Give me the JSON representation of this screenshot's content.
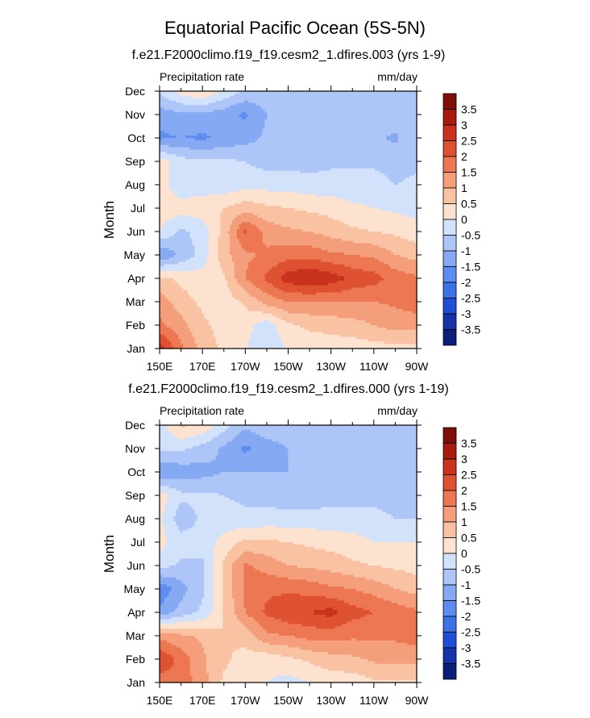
{
  "title": "Equatorial Pacific Ocean (5S-5N)",
  "palette": [
    "#0b1e7a",
    "#1433a8",
    "#1f4fd4",
    "#3b72e6",
    "#5d8df0",
    "#86a9f3",
    "#aec6f7",
    "#d3e2fb",
    "#fde2cf",
    "#f9c2a3",
    "#f49e7b",
    "#ec7752",
    "#de5231",
    "#c9321c",
    "#a81c10",
    "#7d0e08"
  ],
  "chart_data": [
    {
      "type": "heatmap",
      "title": "f.e21.F2000climo.f19_f19.cesm2_1.dfires.003 (yrs 1-9)",
      "variable": "Precipitation rate",
      "units": "mm/day",
      "xlabel": "",
      "ylabel": "Month",
      "x": [
        "150E",
        "160E",
        "170E",
        "180",
        "170W",
        "160W",
        "150W",
        "140W",
        "130W",
        "120W",
        "110W",
        "100W",
        "90W"
      ],
      "x_ticks": [
        "150E",
        "170E",
        "170W",
        "150W",
        "130W",
        "110W",
        "90W"
      ],
      "y": [
        "Jan",
        "Feb",
        "Mar",
        "Apr",
        "May",
        "Jun",
        "Jul",
        "Aug",
        "Sep",
        "Oct",
        "Nov",
        "Dec"
      ],
      "colorbar_levels": [
        "3.5",
        "3",
        "2.5",
        "2",
        "1.5",
        "1",
        "0.5",
        "0",
        "-0.5",
        "-1",
        "-1.5",
        "-2",
        "-2.5",
        "-3",
        "-3.5"
      ],
      "values": [
        [
          2.8,
          1.6,
          0.8,
          0.4,
          0.0,
          -0.3,
          0.0,
          0.2,
          0.2,
          0.2,
          0.3,
          0.3,
          0.3
        ],
        [
          1.6,
          1.2,
          0.6,
          0.3,
          0.2,
          -0.3,
          0.4,
          0.6,
          0.7,
          0.8,
          1.0,
          1.2,
          1.2
        ],
        [
          1.3,
          0.7,
          0.4,
          0.2,
          0.6,
          1.2,
          1.5,
          1.5,
          1.5,
          1.5,
          1.5,
          1.6,
          1.8
        ],
        [
          0.6,
          0.4,
          0.2,
          0.4,
          1.5,
          2.1,
          2.8,
          3.0,
          2.8,
          2.4,
          2.2,
          1.8,
          1.6
        ],
        [
          -1.5,
          -0.9,
          -0.3,
          0.8,
          1.4,
          1.6,
          1.8,
          1.8,
          1.6,
          1.5,
          1.4,
          1.0,
          0.8
        ],
        [
          0.0,
          -0.6,
          -0.3,
          0.7,
          2.1,
          1.3,
          1.1,
          1.0,
          0.8,
          0.6,
          0.5,
          0.4,
          0.2
        ],
        [
          0.3,
          0.2,
          0.3,
          0.5,
          0.8,
          0.6,
          0.5,
          0.4,
          0.3,
          0.1,
          0.0,
          -0.1,
          -0.2
        ],
        [
          0.2,
          -0.3,
          -0.3,
          -0.3,
          -0.2,
          -0.2,
          -0.2,
          -0.3,
          -0.3,
          -0.3,
          -0.3,
          -0.5,
          -0.4
        ],
        [
          0.3,
          -0.3,
          -0.4,
          -0.4,
          -0.5,
          -0.7,
          -0.7,
          -0.7,
          -0.6,
          -0.6,
          -0.6,
          -0.7,
          -0.6
        ],
        [
          -1.6,
          -1.5,
          -1.6,
          -1.4,
          -1.2,
          -0.9,
          -1.0,
          -1.0,
          -0.9,
          -0.9,
          -0.9,
          -1.1,
          -0.6
        ],
        [
          -1.3,
          -1.1,
          -1.1,
          -1.3,
          -1.6,
          -1.0,
          -0.9,
          -0.9,
          -0.8,
          -0.8,
          -0.7,
          -0.7,
          -0.5
        ],
        [
          -0.4,
          0.2,
          0.5,
          -0.1,
          -0.6,
          -0.6,
          -0.6,
          -0.7,
          -0.6,
          -0.6,
          -0.6,
          -0.6,
          -0.5
        ]
      ]
    },
    {
      "type": "heatmap",
      "title": "f.e21.F2000climo.f19_f19.cesm2_1.dfires.000 (yrs 1-19)",
      "variable": "Precipitation rate",
      "units": "mm/day",
      "xlabel": "",
      "ylabel": "Month",
      "x": [
        "150E",
        "160E",
        "170E",
        "180",
        "170W",
        "160W",
        "150W",
        "140W",
        "130W",
        "120W",
        "110W",
        "100W",
        "90W"
      ],
      "x_ticks": [
        "150E",
        "170E",
        "170W",
        "150W",
        "130W",
        "110W",
        "90W"
      ],
      "y": [
        "Jan",
        "Feb",
        "Mar",
        "Apr",
        "May",
        "Jun",
        "Jul",
        "Aug",
        "Sep",
        "Oct",
        "Nov",
        "Dec"
      ],
      "colorbar_levels": [
        "3.5",
        "3",
        "2.5",
        "2",
        "1.5",
        "1",
        "0.5",
        "0",
        "-0.5",
        "-1",
        "-1.5",
        "-2",
        "-2.5",
        "-3",
        "-3.5"
      ],
      "values": [
        [
          1.7,
          1.8,
          1.2,
          0.4,
          0.2,
          0.0,
          -0.2,
          0.0,
          0.2,
          0.2,
          0.4,
          0.4,
          0.4
        ],
        [
          2.5,
          1.8,
          1.1,
          0.6,
          0.3,
          0.2,
          0.4,
          0.6,
          0.8,
          0.9,
          1.1,
          1.2,
          1.2
        ],
        [
          1.3,
          1.1,
          0.9,
          0.5,
          0.7,
          1.4,
          1.5,
          1.7,
          1.7,
          1.6,
          1.6,
          1.6,
          1.7
        ],
        [
          -1.4,
          -0.8,
          -0.4,
          0.5,
          1.5,
          2.1,
          2.4,
          2.5,
          2.7,
          2.2,
          2.0,
          1.8,
          1.6
        ],
        [
          -1.9,
          -1.2,
          -0.6,
          0.6,
          1.6,
          1.9,
          1.9,
          1.8,
          1.6,
          1.5,
          1.3,
          1.0,
          0.8
        ],
        [
          -0.3,
          -0.6,
          -0.6,
          0.6,
          1.6,
          1.3,
          1.0,
          0.9,
          0.8,
          0.6,
          0.5,
          0.4,
          0.3
        ],
        [
          0.2,
          -0.3,
          -0.3,
          0.2,
          0.6,
          0.6,
          0.5,
          0.4,
          0.3,
          0.2,
          0.0,
          0.0,
          0.0
        ],
        [
          0.1,
          -0.8,
          -0.4,
          -0.3,
          -0.4,
          -0.3,
          -0.3,
          -0.3,
          -0.3,
          -0.3,
          -0.3,
          -0.5,
          -0.5
        ],
        [
          0.3,
          -0.4,
          -0.4,
          -0.5,
          -0.6,
          -0.7,
          -0.8,
          -0.8,
          -0.7,
          -0.7,
          -0.7,
          -0.8,
          -0.6
        ],
        [
          -1.5,
          -1.3,
          -1.2,
          -1.0,
          -1.0,
          -1.0,
          -1.0,
          -1.0,
          -1.0,
          -0.9,
          -0.9,
          -0.8,
          -0.6
        ],
        [
          -0.4,
          -0.4,
          -0.7,
          -1.1,
          -1.6,
          -1.3,
          -1.0,
          -0.9,
          -0.8,
          -0.8,
          -0.7,
          -0.6,
          -0.6
        ],
        [
          -0.2,
          0.6,
          0.4,
          -0.3,
          -0.9,
          -0.6,
          -0.6,
          -0.6,
          -0.6,
          -0.6,
          -0.6,
          -0.6,
          -0.6
        ]
      ]
    }
  ]
}
